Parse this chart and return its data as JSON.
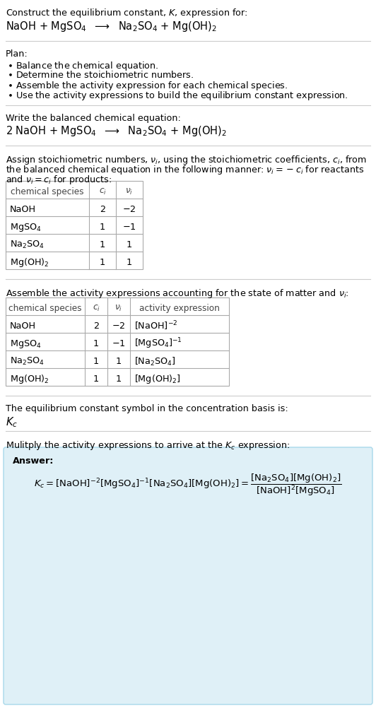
{
  "bg_color": "#ffffff",
  "text_color": "#000000",
  "table_border": "#aaaaaa",
  "divider_color": "#cccccc",
  "answer_box_color": "#dff0f7",
  "answer_box_border": "#a8d8ea",
  "title_line1": "Construct the equilibrium constant, $K$, expression for:",
  "reaction_unbalanced": "NaOH + MgSO$_4$  $\\longrightarrow$  Na$_2$SO$_4$ + Mg(OH)$_2$",
  "plan_header": "Plan:",
  "plan_items": [
    "$\\bullet$ Balance the chemical equation.",
    "$\\bullet$ Determine the stoichiometric numbers.",
    "$\\bullet$ Assemble the activity expression for each chemical species.",
    "$\\bullet$ Use the activity expressions to build the equilibrium constant expression."
  ],
  "balanced_header": "Write the balanced chemical equation:",
  "balanced_eq": "2 NaOH + MgSO$_4$  $\\longrightarrow$  Na$_2$SO$_4$ + Mg(OH)$_2$",
  "stoich_header1": "Assign stoichiometric numbers, $\\nu_i$, using the stoichiometric coefficients, $c_i$, from",
  "stoich_header2": "the balanced chemical equation in the following manner: $\\nu_i = -c_i$ for reactants",
  "stoich_header3": "and $\\nu_i = c_i$ for products:",
  "table1_cols": [
    "chemical species",
    "$c_i$",
    "$\\nu_i$"
  ],
  "table1_rows": [
    [
      "NaOH",
      "2",
      "$-2$"
    ],
    [
      "MgSO$_4$",
      "1",
      "$-1$"
    ],
    [
      "Na$_2$SO$_4$",
      "1",
      "1"
    ],
    [
      "Mg(OH)$_2$",
      "1",
      "1"
    ]
  ],
  "activity_header": "Assemble the activity expressions accounting for the state of matter and $\\nu_i$:",
  "table2_cols": [
    "chemical species",
    "$c_i$",
    "$\\nu_i$",
    "activity expression"
  ],
  "table2_rows": [
    [
      "NaOH",
      "2",
      "$-2$",
      "[NaOH]$^{-2}$"
    ],
    [
      "MgSO$_4$",
      "1",
      "$-1$",
      "[MgSO$_4]^{-1}$"
    ],
    [
      "Na$_2$SO$_4$",
      "1",
      "1",
      "[Na$_2$SO$_4$]"
    ],
    [
      "Mg(OH)$_2$",
      "1",
      "1",
      "[Mg(OH)$_2$]"
    ]
  ],
  "kc_header": "The equilibrium constant symbol in the concentration basis is:",
  "kc_symbol": "$K_c$",
  "multiply_header": "Mulitply the activity expressions to arrive at the $K_c$ expression:",
  "answer_label": "Answer:",
  "fs": 9.2,
  "fs_large": 10.5,
  "fs_header": 9.2
}
